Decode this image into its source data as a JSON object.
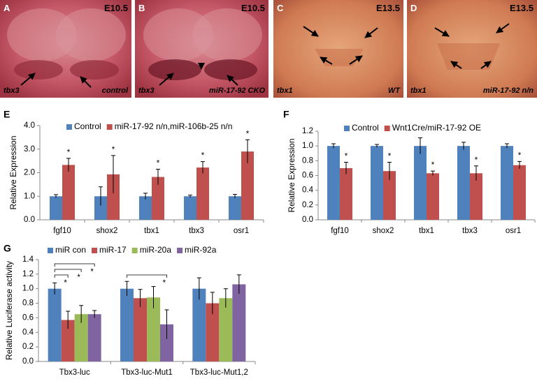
{
  "photos": [
    {
      "letter": "A",
      "stage": "E10.5",
      "gene": "tbx3",
      "genotype": "control"
    },
    {
      "letter": "B",
      "stage": "E10.5",
      "gene": "tbx3",
      "genotype": "miR-17-92 CKO"
    },
    {
      "letter": "C",
      "stage": "E13.5",
      "gene": "tbx1",
      "genotype": "WT"
    },
    {
      "letter": "D",
      "stage": "E13.5",
      "gene": "tbx1",
      "genotype": "miR-17-92 n/n"
    }
  ],
  "chart_data": [
    {
      "type": "bar",
      "panel_label": "E",
      "y_label": "Relative Expression",
      "categories": [
        "fgf10",
        "shox2",
        "tbx1",
        "tbx3",
        "osr1"
      ],
      "series": [
        {
          "name": "Control",
          "color": "#4f81bd",
          "values": [
            1,
            1,
            1,
            1,
            1
          ],
          "errors": [
            0.07,
            0.4,
            0.13,
            0.05,
            0.08
          ]
        },
        {
          "name": "miR-17-92 n/n,miR-106b-25 n/n",
          "color": "#c0504d",
          "values": [
            2.33,
            1.93,
            1.82,
            2.22,
            2.9
          ],
          "errors": [
            0.28,
            0.8,
            0.33,
            0.25,
            0.5
          ],
          "significance": [
            "*",
            "*",
            "*",
            "*",
            "*"
          ]
        }
      ],
      "ylim": [
        0,
        4
      ],
      "yticks": [
        {
          "value": 0,
          "label": "0.0"
        },
        {
          "value": 1,
          "label": "1.0"
        },
        {
          "value": 2,
          "label": "2.0"
        },
        {
          "value": 3,
          "label": "3.0"
        },
        {
          "value": 4,
          "label": "4.0"
        }
      ]
    },
    {
      "type": "bar",
      "panel_label": "F",
      "y_label": "Relative Expression",
      "categories": [
        "fgf10",
        "shox2",
        "tbx1",
        "tbx3",
        "osr1"
      ],
      "series": [
        {
          "name": "Control",
          "color": "#4f81bd",
          "values": [
            1,
            1,
            1,
            1,
            1
          ],
          "errors": [
            0.03,
            0.02,
            0.11,
            0.05,
            0.03
          ]
        },
        {
          "name": "Wnt1Cre/miR-17-92 OE",
          "color": "#c0504d",
          "values": [
            0.7,
            0.66,
            0.63,
            0.63,
            0.74
          ],
          "errors": [
            0.08,
            0.12,
            0.03,
            0.1,
            0.05
          ],
          "significance": [
            "*",
            "*",
            "*",
            "*",
            "*"
          ]
        }
      ],
      "ylim": [
        0,
        1.2
      ],
      "yticks": [
        {
          "value": 0,
          "label": "0.0"
        },
        0.2,
        0.4,
        0.6,
        0.8,
        {
          "value": 1,
          "label": "1.0"
        },
        1.2
      ]
    },
    {
      "type": "bar",
      "panel_label": "G",
      "y_label": "Relative Luciferase activity",
      "brackets": true,
      "categories": [
        "Tbx3-luc",
        "Tbx3-luc-Mut1",
        "Tbx3-luc-Mut1,2"
      ],
      "series": [
        {
          "name": "miR con",
          "color": "#4f81bd",
          "values": [
            1,
            1,
            1
          ],
          "errors": [
            0.08,
            0.1,
            0.15
          ]
        },
        {
          "name": "miR-17",
          "color": "#c0504d",
          "values": [
            0.57,
            0.87,
            0.8
          ],
          "errors": [
            0.12,
            0.12,
            0.15
          ],
          "significance": [
            "*",
            null,
            null
          ]
        },
        {
          "name": "miR-20a",
          "color": "#9bbb59",
          "values": [
            0.65,
            0.88,
            0.87
          ],
          "errors": [
            0.12,
            0.15,
            0.13
          ],
          "significance": [
            "*",
            null,
            null
          ]
        },
        {
          "name": "miR-92a",
          "color": "#8064a2",
          "values": [
            0.65,
            0.51,
            1.06
          ],
          "errors": [
            0.05,
            0.2,
            0.13
          ],
          "significance": [
            "*",
            "*",
            null
          ]
        }
      ],
      "ylim": [
        0,
        1.4
      ],
      "yticks": [
        {
          "value": 0,
          "label": "0.0"
        },
        0.2,
        0.4,
        0.6,
        0.8,
        {
          "value": 1,
          "label": "1.0"
        },
        1.2,
        1.4
      ]
    }
  ]
}
